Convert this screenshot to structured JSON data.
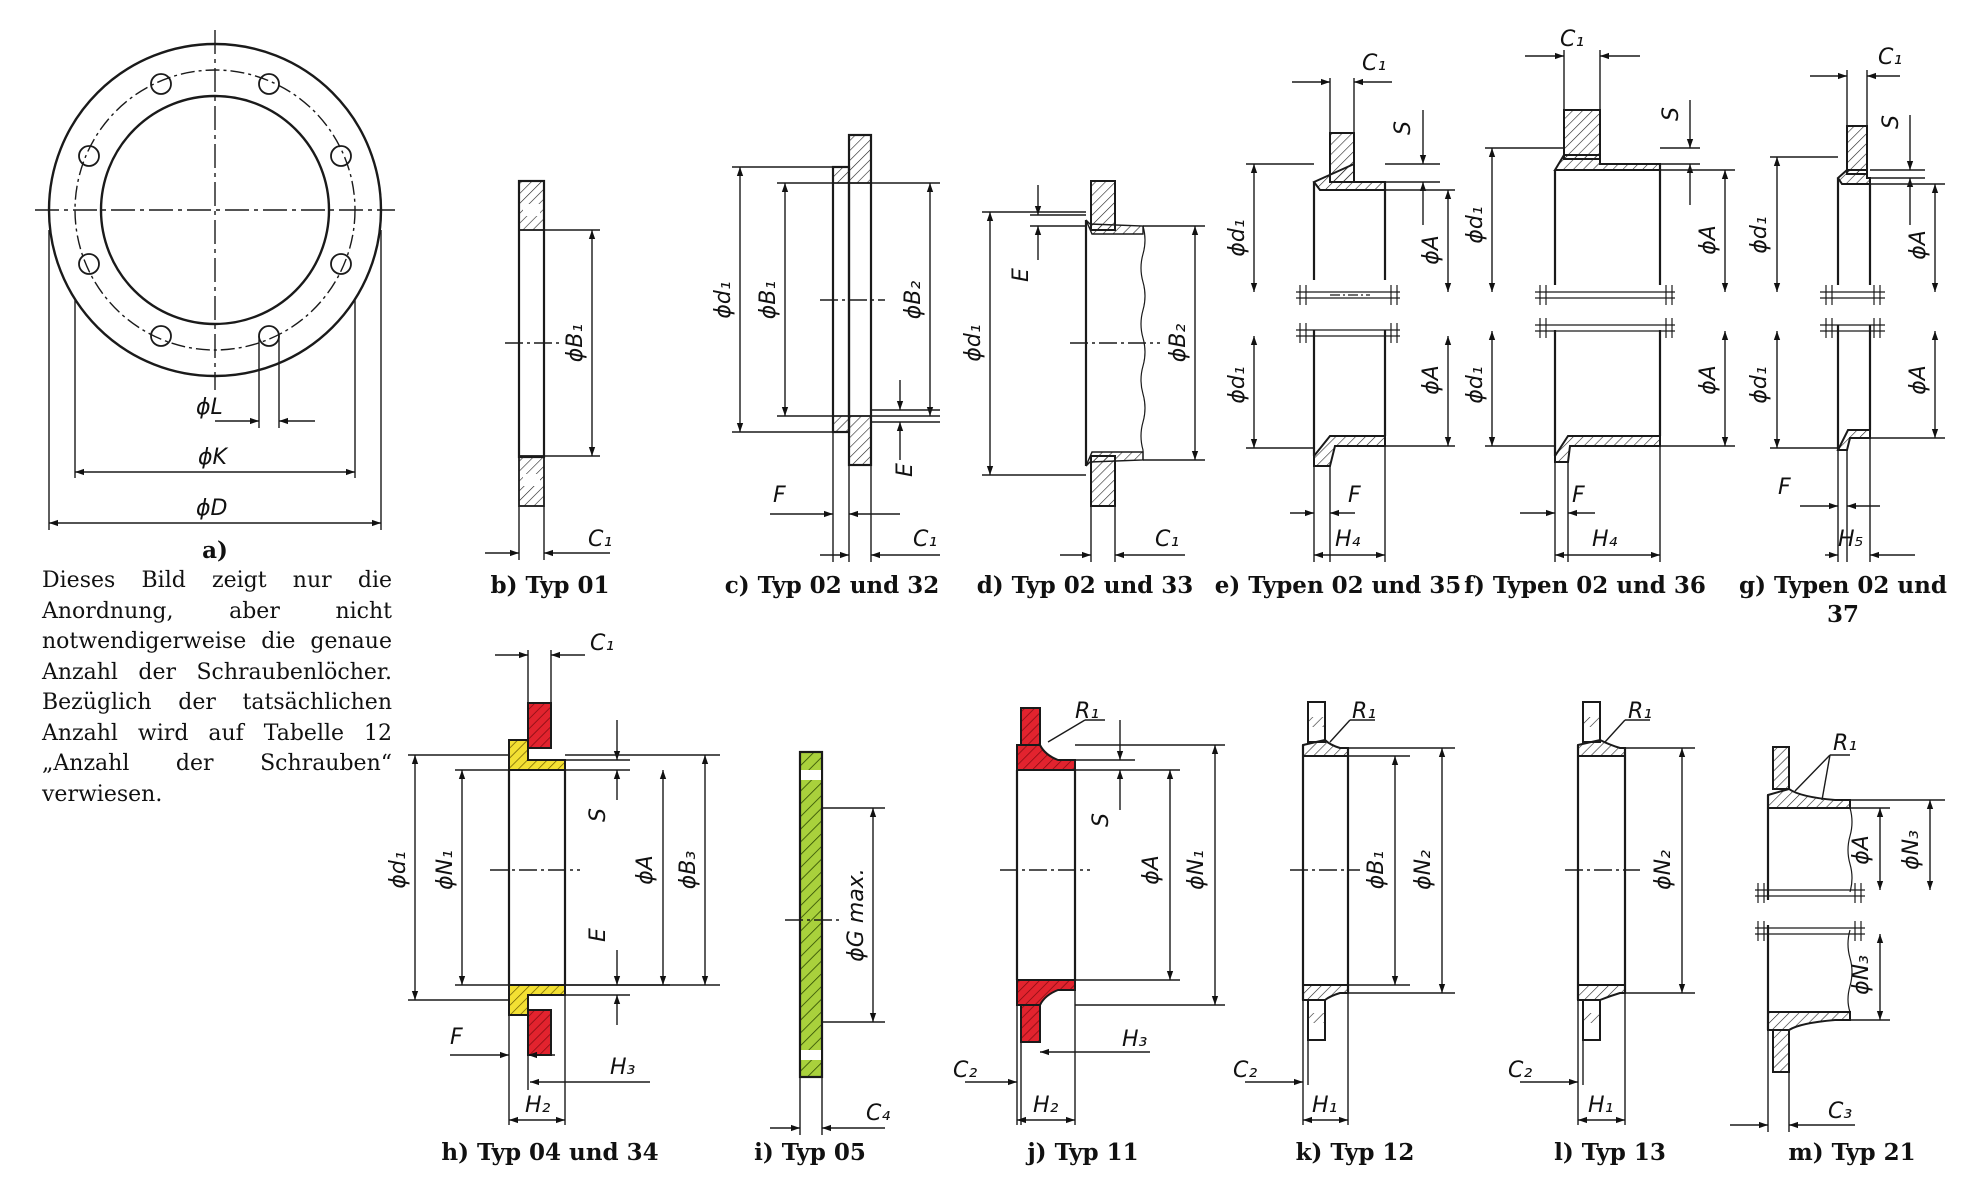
{
  "figure_a": {
    "caption": "a)",
    "labels": {
      "L": "ϕL",
      "K": "ϕK",
      "D": "ϕD"
    }
  },
  "note_lines": [
    "Dieses Bild zeigt nur die",
    "Anordnung, aber nicht",
    "notwendigerweise die genaue",
    "Anzahl der Schraubenlöcher.",
    "Bezüglich der tatsächlichen",
    "Anzahl wird auf Tabelle 12",
    "„Anzahl der Schrauben“",
    "verwiesen."
  ],
  "captions": {
    "b": "b) Typ 01",
    "c": "c) Typ 02 und 32",
    "d": "d) Typ 02 und 33",
    "e": "e) Typen 02 und 35",
    "f": "f) Typen 02 und 36",
    "g1": "g) Typen 02 und",
    "g2": "37",
    "h": "h) Typ 04 und 34",
    "i": "i) Typ 05",
    "j": "j) Typ 11",
    "k": "k) Typ 12",
    "l": "l) Typ 13",
    "m": "m) Typ 21"
  },
  "dims": {
    "b": {
      "B1": "ϕB₁",
      "C1": "C₁"
    },
    "c": {
      "d1": "ϕd₁",
      "B1": "ϕB₁",
      "B2": "ϕB₂",
      "E": "E",
      "F": "F",
      "C1": "C₁"
    },
    "d": {
      "d1": "ϕd₁",
      "B2": "ϕB₂",
      "E": "E",
      "C1": "C₁"
    },
    "e": {
      "C1": "C₁",
      "S": "S",
      "d1a": "ϕd₁",
      "d1b": "ϕd₁",
      "Aa": "ϕA",
      "Ab": "ϕA",
      "F": "F",
      "H4": "H₄"
    },
    "f": {
      "C1": "C₁",
      "S": "S",
      "d1a": "ϕd₁",
      "d1b": "ϕd₁",
      "Aa": "ϕA",
      "Ab": "ϕA",
      "F": "F",
      "H4": "H₄"
    },
    "g": {
      "C1": "C₁",
      "S": "S",
      "d1a": "ϕd₁",
      "d1b": "ϕd₁",
      "Aa": "ϕA",
      "Ab": "ϕA",
      "F": "F",
      "H5": "H₅"
    },
    "h": {
      "C1": "C₁",
      "d1": "ϕd₁",
      "N1": "ϕN₁",
      "S": "S",
      "A": "ϕA",
      "B3": "ϕB₃",
      "E": "E",
      "F": "F",
      "H3": "H₃",
      "H2": "H₂"
    },
    "i": {
      "G": "ϕG max.",
      "C4": "C₄"
    },
    "j": {
      "R1": "R₁",
      "S": "S",
      "A": "ϕA",
      "N1": "ϕN₁",
      "C2": "C₂",
      "H3": "H₃",
      "H2": "H₂"
    },
    "k": {
      "R1": "R₁",
      "B1": "ϕB₁",
      "N2": "ϕN₂",
      "C2": "C₂",
      "H1": "H₁"
    },
    "l": {
      "R1": "R₁",
      "N2": "ϕN₂",
      "C2": "C₂",
      "H1": "H₁"
    },
    "m": {
      "R1": "R₁",
      "A": "ϕA",
      "N3a": "ϕN₃",
      "N3b": "ϕN₃",
      "C3": "C₃"
    }
  },
  "colors": {
    "line": "#1a1a1a",
    "hatch_red": "#e2232e",
    "hatch_yellow": "#f3e033",
    "hatch_green": "#a9d13c"
  }
}
